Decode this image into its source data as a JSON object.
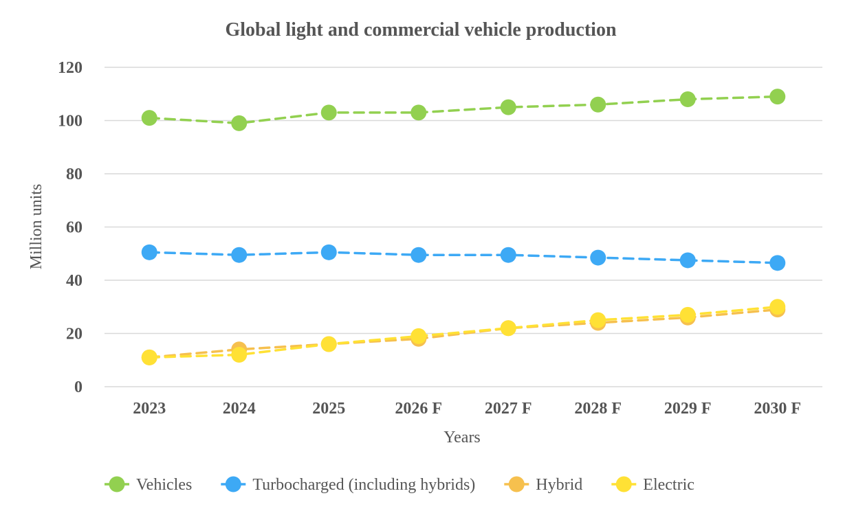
{
  "chart_data": {
    "type": "line",
    "title": "Global light and commercial vehicle production",
    "xlabel": "Years",
    "ylabel": "Million units",
    "ylim": [
      0,
      120
    ],
    "yticks": [
      0,
      20,
      40,
      60,
      80,
      100,
      120
    ],
    "grid": true,
    "legend_position": "bottom",
    "categories": [
      "2023",
      "2024",
      "2025",
      "2026 F",
      "2027 F",
      "2028 F",
      "2029 F",
      "2030 F"
    ],
    "series": [
      {
        "name": "Vehicles",
        "color": "#92D050",
        "values": [
          101,
          99,
          103,
          103,
          105,
          106,
          108,
          109
        ]
      },
      {
        "name": "Turbocharged (including hybrids)",
        "color": "#3DA9F5",
        "values": [
          50.5,
          49.5,
          50.5,
          49.5,
          49.5,
          48.5,
          47.5,
          46.5
        ]
      },
      {
        "name": "Hybrid",
        "color": "#F6C04E",
        "values": [
          11,
          14,
          16,
          18,
          22,
          24,
          26,
          29
        ]
      },
      {
        "name": "Electric",
        "color": "#FFE135",
        "values": [
          11,
          12,
          16,
          19,
          22,
          25,
          27,
          30
        ]
      }
    ]
  }
}
